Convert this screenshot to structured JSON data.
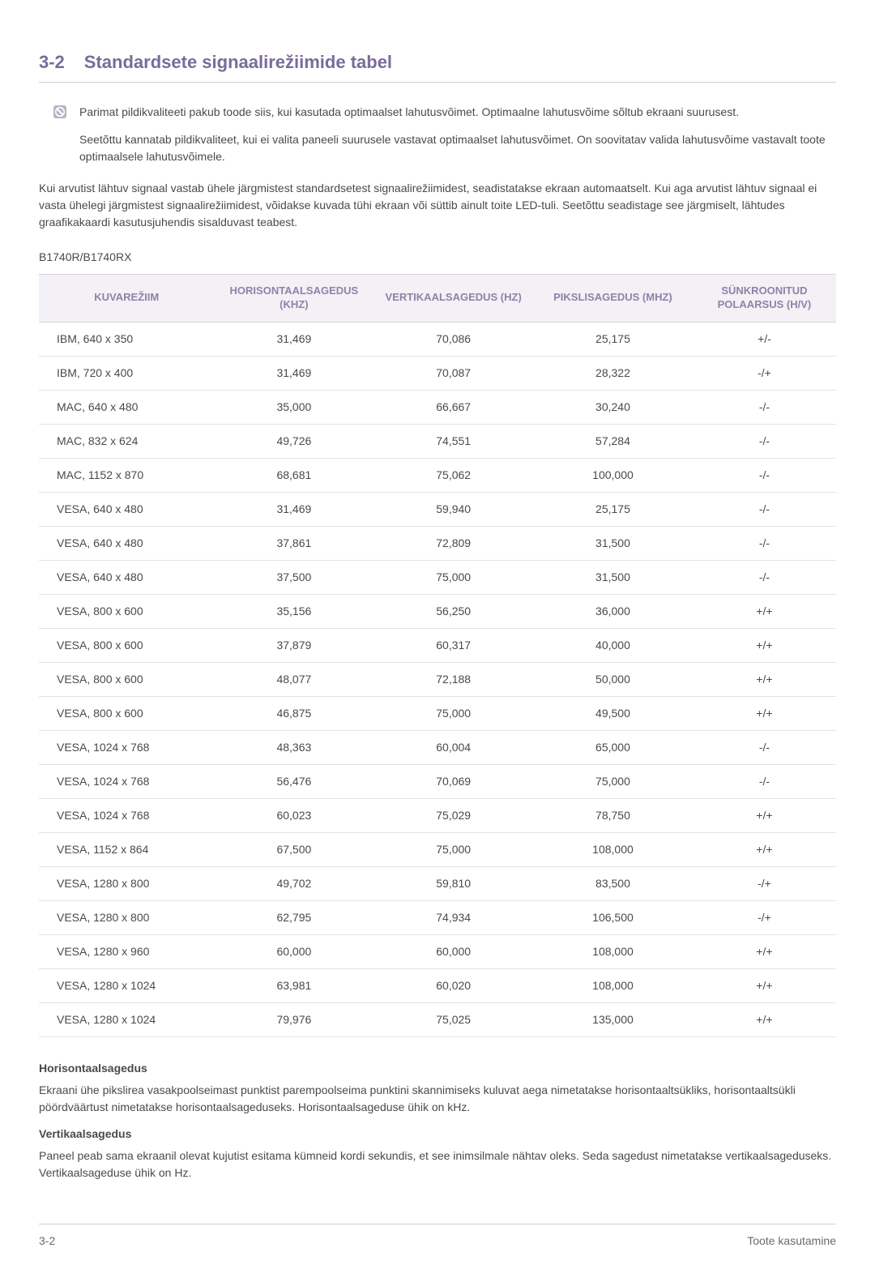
{
  "colors": {
    "accent": "#7a6b9a",
    "header_bg": "#f3f0f6",
    "header_fg": "#8f82a8",
    "rule": "#d0d0d0",
    "row_rule": "#e5e0ea",
    "text": "#4a4a4a"
  },
  "heading": {
    "number": "3-2",
    "title": "Standardsete signaalirežiimide tabel"
  },
  "note": {
    "line1": "Parimat pildikvaliteeti pakub toode siis, kui kasutada optimaalset lahutusvõimet. Optimaalne lahutusvõime sõltub ekraani suurusest.",
    "line2": "Seetõttu kannatab pildikvaliteet, kui ei valita paneeli suurusele vastavat optimaalset lahutusvõimet. On soovitatav valida lahutusvõime vastavalt toote optimaalsele lahutusvõimele."
  },
  "intro": "Kui arvutist lähtuv signaal vastab ühele järgmistest standardsetest signaalirežiimidest, seadistatakse ekraan automaatselt. Kui aga arvutist lähtuv signaal ei vasta ühelegi järgmistest signaalirežiimidest, võidakse kuvada tühi ekraan või süttib ainult toite LED-tuli. Seetõttu seadistage see järgmiselt, lähtudes graafikakaardi kasutusjuhendis sisalduvast teabest.",
  "model": "B1740R/B1740RX",
  "table": {
    "columns": [
      "KUVAREŽIIM",
      "HORISONTAALSAGEDUS (KHZ)",
      "VERTIKAALSAGEDUS (HZ)",
      "PIKSLISAGEDUS (MHZ)",
      "SÜNKROONITUD POLAARSUS (H/V)"
    ],
    "column_widths_pct": [
      22,
      20,
      20,
      20,
      18
    ],
    "header_bg": "#f3f0f6",
    "header_fg": "#8f82a8",
    "row_border": "#e5e0ea",
    "fontsize_header": 13,
    "fontsize_body": 14,
    "rows": [
      [
        "IBM, 640 x 350",
        "31,469",
        "70,086",
        "25,175",
        "+/-"
      ],
      [
        "IBM, 720 x 400",
        "31,469",
        "70,087",
        "28,322",
        "-/+"
      ],
      [
        "MAC, 640 x 480",
        "35,000",
        "66,667",
        "30,240",
        "-/-"
      ],
      [
        "MAC, 832 x 624",
        "49,726",
        "74,551",
        "57,284",
        "-/-"
      ],
      [
        "MAC, 1152 x 870",
        "68,681",
        "75,062",
        "100,000",
        "-/-"
      ],
      [
        "VESA, 640 x 480",
        "31,469",
        "59,940",
        "25,175",
        "-/-"
      ],
      [
        "VESA, 640 x 480",
        "37,861",
        "72,809",
        "31,500",
        "-/-"
      ],
      [
        "VESA, 640 x 480",
        "37,500",
        "75,000",
        "31,500",
        "-/-"
      ],
      [
        "VESA, 800 x 600",
        "35,156",
        "56,250",
        "36,000",
        "+/+"
      ],
      [
        "VESA, 800 x 600",
        "37,879",
        "60,317",
        "40,000",
        "+/+"
      ],
      [
        "VESA, 800 x 600",
        "48,077",
        "72,188",
        "50,000",
        "+/+"
      ],
      [
        "VESA, 800 x 600",
        "46,875",
        "75,000",
        "49,500",
        "+/+"
      ],
      [
        "VESA, 1024 x 768",
        "48,363",
        "60,004",
        "65,000",
        "-/-"
      ],
      [
        "VESA, 1024 x 768",
        "56,476",
        "70,069",
        "75,000",
        "-/-"
      ],
      [
        "VESA, 1024 x 768",
        "60,023",
        "75,029",
        "78,750",
        "+/+"
      ],
      [
        "VESA, 1152 x 864",
        "67,500",
        "75,000",
        "108,000",
        "+/+"
      ],
      [
        "VESA, 1280 x 800",
        "49,702",
        "59,810",
        "83,500",
        "-/+"
      ],
      [
        "VESA, 1280 x 800",
        "62,795",
        "74,934",
        "106,500",
        "-/+"
      ],
      [
        "VESA, 1280 x 960",
        "60,000",
        "60,000",
        "108,000",
        "+/+"
      ],
      [
        "VESA, 1280 x 1024",
        "63,981",
        "60,020",
        "108,000",
        "+/+"
      ],
      [
        "VESA, 1280 x 1024",
        "79,976",
        "75,025",
        "135,000",
        "+/+"
      ]
    ]
  },
  "defs": {
    "h_title": "Horisontaalsagedus",
    "h_body": "Ekraani ühe pikslirea vasakpoolseimast punktist parempoolseima punktini skannimiseks kuluvat aega nimetatakse horisontaaltsükliks, horisontaaltsükli pöördväärtust nimetatakse horisontaalsageduseks. Horisontaalsageduse ühik on kHz.",
    "v_title": "Vertikaalsagedus",
    "v_body": "Paneel peab sama ekraanil olevat kujutist esitama kümneid kordi sekundis, et see inimsilmale nähtav oleks. Seda sagedust nimetatakse vertikaalsageduseks. Vertikaalsageduse ühik on Hz."
  },
  "footer": {
    "left": "3-2",
    "right": "Toote kasutamine"
  }
}
